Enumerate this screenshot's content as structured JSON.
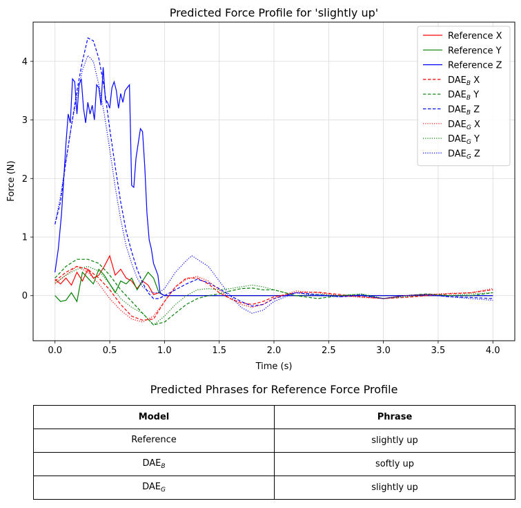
{
  "chart_data": {
    "type": "line",
    "title": "Predicted Force Profile for 'slightly up'",
    "xlabel": "Time (s)",
    "ylabel": "Force (N)",
    "xlim": [
      -0.2,
      4.2
    ],
    "ylim": [
      -0.77,
      4.67
    ],
    "xticks": [
      "0.0",
      "0.5",
      "1.0",
      "1.5",
      "2.0",
      "2.5",
      "3.0",
      "3.5",
      "4.0"
    ],
    "yticks": [
      "0",
      "1",
      "2",
      "3",
      "4"
    ],
    "grid": true,
    "legend_position": "top-right",
    "series": [
      {
        "name": "Reference X",
        "legend_main": "Reference X",
        "legend_sub": "",
        "legend_suffix": "",
        "color": "#ff0000",
        "style": "solid",
        "x": [
          0,
          0.05,
          0.1,
          0.15,
          0.2,
          0.25,
          0.3,
          0.35,
          0.4,
          0.45,
          0.5,
          0.55,
          0.6,
          0.65,
          0.7,
          0.75,
          0.8,
          0.85,
          0.9,
          0.95,
          1.0,
          1.5,
          2.0,
          2.5,
          3.0,
          3.5,
          4.0
        ],
        "y": [
          0.28,
          0.2,
          0.3,
          0.18,
          0.4,
          0.25,
          0.45,
          0.3,
          0.35,
          0.5,
          0.68,
          0.35,
          0.45,
          0.3,
          0.25,
          0.12,
          0.25,
          0.18,
          0.02,
          0.05,
          0.0,
          0.0,
          0.0,
          0.0,
          0.0,
          0.0,
          0.0
        ]
      },
      {
        "name": "Reference Y",
        "legend_main": "Reference Y",
        "legend_sub": "",
        "legend_suffix": "",
        "color": "#008000",
        "style": "solid",
        "x": [
          0,
          0.05,
          0.1,
          0.15,
          0.2,
          0.25,
          0.3,
          0.35,
          0.4,
          0.45,
          0.5,
          0.55,
          0.6,
          0.65,
          0.7,
          0.75,
          0.8,
          0.85,
          0.9,
          0.95,
          1.0,
          1.5,
          2.0,
          2.5,
          3.0,
          3.5,
          4.0
        ],
        "y": [
          0.0,
          -0.1,
          -0.08,
          0.05,
          -0.1,
          0.4,
          0.3,
          0.2,
          0.45,
          0.35,
          0.2,
          0.05,
          0.25,
          0.2,
          0.3,
          0.1,
          0.25,
          0.4,
          0.3,
          0.05,
          0.0,
          0.0,
          0.0,
          0.0,
          0.0,
          0.0,
          0.0
        ]
      },
      {
        "name": "Reference Z",
        "legend_main": "Reference Z",
        "legend_sub": "",
        "legend_suffix": "",
        "color": "#0000ff",
        "style": "solid",
        "x": [
          0,
          0.03,
          0.06,
          0.1,
          0.12,
          0.14,
          0.16,
          0.18,
          0.2,
          0.22,
          0.24,
          0.26,
          0.28,
          0.3,
          0.32,
          0.34,
          0.36,
          0.38,
          0.4,
          0.42,
          0.44,
          0.46,
          0.48,
          0.5,
          0.52,
          0.54,
          0.56,
          0.58,
          0.6,
          0.62,
          0.64,
          0.66,
          0.68,
          0.7,
          0.72,
          0.74,
          0.76,
          0.78,
          0.8,
          0.82,
          0.84,
          0.86,
          0.88,
          0.9,
          0.92,
          0.94,
          0.96,
          0.98,
          1.0,
          1.5,
          2.0,
          2.5,
          3.0,
          3.5,
          4.0
        ],
        "y": [
          0.4,
          0.8,
          1.4,
          2.6,
          3.1,
          2.95,
          3.7,
          3.65,
          3.1,
          3.6,
          3.7,
          3.2,
          2.95,
          3.3,
          3.1,
          3.25,
          3.0,
          3.6,
          3.55,
          3.25,
          3.9,
          3.35,
          3.3,
          3.2,
          3.55,
          3.65,
          3.5,
          3.2,
          3.45,
          3.3,
          3.5,
          3.55,
          3.6,
          1.88,
          1.85,
          2.35,
          2.6,
          2.85,
          2.8,
          2.2,
          1.4,
          0.95,
          0.8,
          0.55,
          0.45,
          0.35,
          0.05,
          0.02,
          0.0,
          0.0,
          0.0,
          0.0,
          0.0,
          0.0,
          0.0
        ]
      },
      {
        "name": "DAE_B X",
        "legend_main": "DAE",
        "legend_sub": "B",
        "legend_suffix": " X",
        "color": "#ff0000",
        "style": "dashed",
        "x": [
          0,
          0.1,
          0.2,
          0.3,
          0.4,
          0.5,
          0.6,
          0.7,
          0.8,
          0.9,
          1.0,
          1.1,
          1.2,
          1.3,
          1.4,
          1.5,
          1.6,
          1.7,
          1.8,
          1.9,
          2.0,
          2.2,
          2.4,
          2.6,
          2.8,
          3.0,
          3.2,
          3.4,
          3.6,
          3.8,
          4.0
        ],
        "y": [
          0.25,
          0.4,
          0.5,
          0.45,
          0.3,
          0.1,
          -0.15,
          -0.35,
          -0.42,
          -0.4,
          -0.1,
          0.15,
          0.3,
          0.3,
          0.2,
          0.05,
          -0.05,
          -0.12,
          -0.15,
          -0.1,
          -0.02,
          0.05,
          0.06,
          0.02,
          -0.02,
          -0.05,
          -0.03,
          0.0,
          0.03,
          0.05,
          0.1
        ]
      },
      {
        "name": "DAE_B Y",
        "legend_main": "DAE",
        "legend_sub": "B",
        "legend_suffix": " Y",
        "color": "#008000",
        "style": "dashed",
        "x": [
          0,
          0.1,
          0.2,
          0.3,
          0.4,
          0.5,
          0.6,
          0.7,
          0.8,
          0.9,
          1.0,
          1.1,
          1.2,
          1.3,
          1.4,
          1.5,
          1.6,
          1.7,
          1.8,
          1.9,
          2.0,
          2.2,
          2.4,
          2.6,
          2.8,
          3.0,
          3.2,
          3.4,
          3.6,
          3.8,
          4.0
        ],
        "y": [
          0.3,
          0.5,
          0.62,
          0.62,
          0.55,
          0.35,
          0.1,
          -0.1,
          -0.3,
          -0.5,
          -0.45,
          -0.3,
          -0.15,
          -0.05,
          0.0,
          0.03,
          0.08,
          0.12,
          0.13,
          0.1,
          0.1,
          0.0,
          -0.05,
          0.0,
          0.02,
          -0.05,
          0.0,
          0.03,
          0.0,
          0.0,
          0.05
        ]
      },
      {
        "name": "DAE_B Z",
        "legend_main": "DAE",
        "legend_sub": "B",
        "legend_suffix": " Z",
        "color": "#0000ff",
        "style": "dashed",
        "x": [
          0,
          0.05,
          0.1,
          0.15,
          0.2,
          0.25,
          0.3,
          0.35,
          0.4,
          0.45,
          0.5,
          0.55,
          0.6,
          0.65,
          0.7,
          0.75,
          0.8,
          0.85,
          0.9,
          0.95,
          1.0,
          1.1,
          1.2,
          1.3,
          1.4,
          1.5,
          1.6,
          1.7,
          1.8,
          1.9,
          2.0,
          2.2,
          2.4,
          2.6,
          2.8,
          3.0,
          3.2,
          3.4,
          3.6,
          3.8,
          4.0
        ],
        "y": [
          1.22,
          1.6,
          2.3,
          2.9,
          3.5,
          4.0,
          4.4,
          4.35,
          4.05,
          3.55,
          2.85,
          2.2,
          1.6,
          1.1,
          0.75,
          0.45,
          0.22,
          0.05,
          -0.05,
          -0.05,
          0.0,
          0.1,
          0.2,
          0.28,
          0.22,
          0.12,
          0.0,
          -0.1,
          -0.18,
          -0.15,
          -0.05,
          0.05,
          0.02,
          -0.02,
          0.0,
          -0.05,
          0.0,
          0.02,
          -0.02,
          -0.03,
          -0.05
        ]
      },
      {
        "name": "DAE_G X",
        "legend_main": "DAE",
        "legend_sub": "G",
        "legend_suffix": " X",
        "color": "#ff0000",
        "style": "dotted",
        "x": [
          0,
          0.1,
          0.2,
          0.3,
          0.4,
          0.5,
          0.6,
          0.7,
          0.8,
          0.9,
          1.0,
          1.1,
          1.2,
          1.3,
          1.4,
          1.5,
          1.6,
          1.7,
          1.8,
          1.9,
          2.0,
          2.2,
          2.4,
          2.6,
          2.8,
          3.0,
          3.2,
          3.4,
          3.6,
          3.8,
          4.0
        ],
        "y": [
          0.2,
          0.35,
          0.5,
          0.4,
          0.2,
          -0.05,
          -0.25,
          -0.4,
          -0.45,
          -0.35,
          -0.1,
          0.15,
          0.28,
          0.33,
          0.25,
          0.1,
          -0.05,
          -0.15,
          -0.2,
          -0.15,
          -0.05,
          0.08,
          0.05,
          0.0,
          -0.03,
          -0.05,
          0.0,
          0.02,
          0.04,
          0.05,
          0.12
        ]
      },
      {
        "name": "DAE_G Y",
        "legend_main": "DAE",
        "legend_sub": "G",
        "legend_suffix": " Y",
        "color": "#008000",
        "style": "dotted",
        "x": [
          0,
          0.1,
          0.2,
          0.3,
          0.4,
          0.5,
          0.6,
          0.7,
          0.8,
          0.9,
          1.0,
          1.1,
          1.2,
          1.3,
          1.4,
          1.5,
          1.6,
          1.7,
          1.8,
          1.9,
          2.0,
          2.2,
          2.4,
          2.6,
          2.8,
          3.0,
          3.2,
          3.4,
          3.6,
          3.8,
          4.0
        ],
        "y": [
          0.22,
          0.35,
          0.45,
          0.5,
          0.42,
          0.2,
          -0.05,
          -0.2,
          -0.3,
          -0.5,
          -0.35,
          -0.15,
          0.0,
          0.1,
          0.12,
          0.1,
          0.12,
          0.15,
          0.18,
          0.15,
          0.1,
          0.0,
          0.02,
          0.0,
          0.03,
          -0.05,
          -0.02,
          0.02,
          0.0,
          0.03,
          0.05
        ]
      },
      {
        "name": "DAE_G Z",
        "legend_main": "DAE",
        "legend_sub": "G",
        "legend_suffix": " Z",
        "color": "#0000ff",
        "style": "dotted",
        "x": [
          0,
          0.05,
          0.1,
          0.15,
          0.2,
          0.25,
          0.3,
          0.35,
          0.4,
          0.45,
          0.5,
          0.55,
          0.6,
          0.65,
          0.7,
          0.75,
          0.8,
          0.85,
          0.9,
          0.95,
          1.0,
          1.1,
          1.2,
          1.25,
          1.3,
          1.4,
          1.5,
          1.6,
          1.7,
          1.8,
          1.9,
          2.0,
          2.2,
          2.4,
          2.6,
          2.8,
          3.0,
          3.2,
          3.4,
          3.6,
          3.8,
          4.0
        ],
        "y": [
          1.22,
          1.7,
          2.3,
          2.9,
          3.4,
          3.85,
          4.1,
          4.0,
          3.6,
          3.1,
          2.5,
          1.85,
          1.3,
          0.85,
          0.55,
          0.3,
          0.15,
          0.08,
          0.05,
          0.05,
          0.12,
          0.4,
          0.6,
          0.68,
          0.62,
          0.5,
          0.25,
          0.0,
          -0.2,
          -0.3,
          -0.25,
          -0.1,
          0.05,
          0.0,
          -0.02,
          0.02,
          -0.05,
          0.0,
          0.02,
          -0.02,
          -0.05,
          -0.08
        ]
      }
    ]
  },
  "table": {
    "title": "Predicted Phrases for Reference Force Profile",
    "headers": {
      "model": "Model",
      "phrase": "Phrase"
    },
    "rows": [
      {
        "model_main": "Reference",
        "model_sub": "",
        "phrase": "slightly up"
      },
      {
        "model_main": "DAE",
        "model_sub": "B",
        "phrase": "softly up"
      },
      {
        "model_main": "DAE",
        "model_sub": "G",
        "phrase": "slightly  up"
      }
    ]
  }
}
